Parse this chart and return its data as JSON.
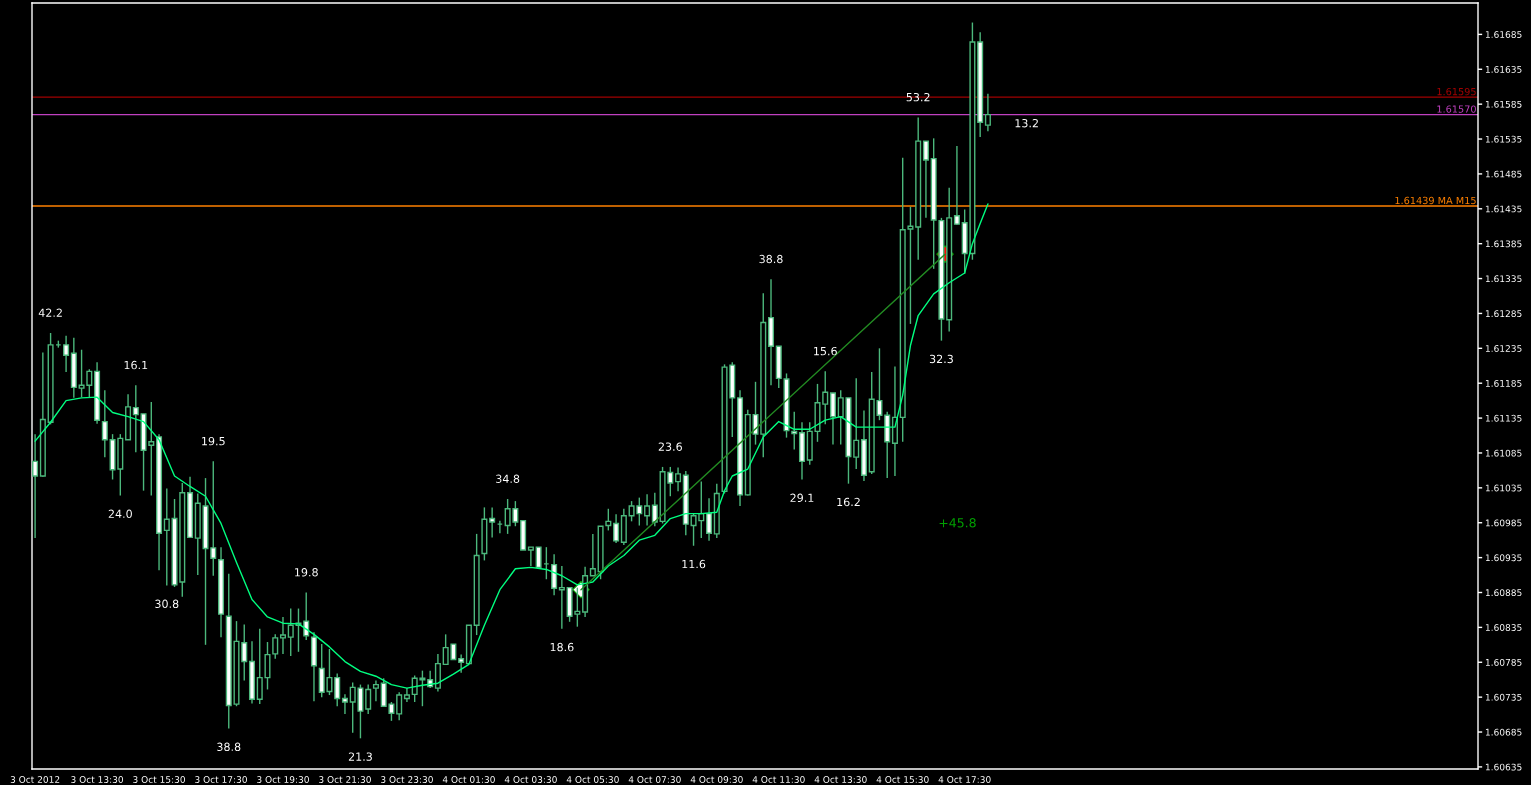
{
  "chart_data": {
    "type": "candlestick",
    "color": "#4cb87c",
    "x": [
      "2012-10-03T11:30",
      "2012-10-03T11:45",
      "2012-10-03T12:00",
      "2012-10-03T12:15",
      "2012-10-03T12:30",
      "2012-10-03T12:45",
      "2012-10-03T13:00",
      "2012-10-03T13:15",
      "2012-10-03T13:30",
      "2012-10-03T13:45",
      "2012-10-03T14:00",
      "2012-10-03T14:15",
      "2012-10-03T14:30",
      "2012-10-03T14:45",
      "2012-10-03T15:00",
      "2012-10-03T15:15",
      "2012-10-03T15:30",
      "2012-10-03T15:45",
      "2012-10-03T16:00",
      "2012-10-03T16:15",
      "2012-10-03T16:30",
      "2012-10-03T16:45",
      "2012-10-03T17:00",
      "2012-10-03T17:15",
      "2012-10-03T17:30",
      "2012-10-03T17:45",
      "2012-10-03T18:00",
      "2012-10-03T18:15",
      "2012-10-03T18:30",
      "2012-10-03T18:45",
      "2012-10-03T19:00",
      "2012-10-03T19:15",
      "2012-10-03T19:30",
      "2012-10-03T19:45",
      "2012-10-03T20:00",
      "2012-10-03T20:15",
      "2012-10-03T20:30",
      "2012-10-03T20:45",
      "2012-10-03T21:00",
      "2012-10-03T21:15",
      "2012-10-03T21:30",
      "2012-10-03T21:45",
      "2012-10-03T22:00",
      "2012-10-03T22:15",
      "2012-10-03T22:30",
      "2012-10-03T22:45",
      "2012-10-03T23:00",
      "2012-10-03T23:15",
      "2012-10-03T23:30",
      "2012-10-03T23:45",
      "2012-10-04T00:00",
      "2012-10-04T00:15",
      "2012-10-04T00:30",
      "2012-10-04T00:45",
      "2012-10-04T01:00",
      "2012-10-04T01:15",
      "2012-10-04T01:30",
      "2012-10-04T01:45",
      "2012-10-04T02:00",
      "2012-10-04T02:15",
      "2012-10-04T02:30",
      "2012-10-04T02:45",
      "2012-10-04T03:00",
      "2012-10-04T03:15",
      "2012-10-04T03:30",
      "2012-10-04T03:45",
      "2012-10-04T04:00",
      "2012-10-04T04:15",
      "2012-10-04T04:30",
      "2012-10-04T04:45",
      "2012-10-04T05:00",
      "2012-10-04T05:15",
      "2012-10-04T05:30",
      "2012-10-04T05:45",
      "2012-10-04T06:00",
      "2012-10-04T06:15",
      "2012-10-04T06:30",
      "2012-10-04T06:45",
      "2012-10-04T07:00",
      "2012-10-04T07:15",
      "2012-10-04T07:30",
      "2012-10-04T07:45",
      "2012-10-04T08:00",
      "2012-10-04T08:15",
      "2012-10-04T08:30",
      "2012-10-04T08:45",
      "2012-10-04T09:00",
      "2012-10-04T09:15",
      "2012-10-04T09:30",
      "2012-10-04T09:45",
      "2012-10-04T10:00",
      "2012-10-04T10:15",
      "2012-10-04T10:30",
      "2012-10-04T10:45",
      "2012-10-04T11:00",
      "2012-10-04T11:15",
      "2012-10-04T11:30",
      "2012-10-04T11:45",
      "2012-10-04T12:00",
      "2012-10-04T12:15",
      "2012-10-04T12:30",
      "2012-10-04T12:45",
      "2012-10-04T13:00",
      "2012-10-04T13:15",
      "2012-10-04T13:30",
      "2012-10-04T13:45",
      "2012-10-04T14:00",
      "2012-10-04T14:15",
      "2012-10-04T14:30",
      "2012-10-04T14:45",
      "2012-10-04T15:00",
      "2012-10-04T15:15",
      "2012-10-04T15:30",
      "2012-10-04T15:45",
      "2012-10-04T16:00",
      "2012-10-04T16:15",
      "2012-10-04T16:30",
      "2012-10-04T16:45",
      "2012-10-04T17:00",
      "2012-10-04T17:15",
      "2012-10-04T17:30",
      "2012-10-04T17:45",
      "2012-10-04T18:00",
      "2012-10-04T18:15"
    ],
    "ohlc": [
      [
        1.61073,
        1.61112,
        1.60963,
        1.61052
      ],
      [
        1.61052,
        1.61229,
        1.61051,
        1.61133
      ],
      [
        1.61129,
        1.61257,
        1.61126,
        1.6124
      ],
      [
        1.6124,
        1.61246,
        1.61236,
        1.6124
      ],
      [
        1.6124,
        1.61253,
        1.61201,
        1.61225
      ],
      [
        1.61228,
        1.6125,
        1.61164,
        1.61179
      ],
      [
        1.61178,
        1.61233,
        1.61165,
        1.61182
      ],
      [
        1.61182,
        1.61205,
        1.61164,
        1.61202
      ],
      [
        1.61202,
        1.61215,
        1.61127,
        1.61132
      ],
      [
        1.6113,
        1.61175,
        1.61079,
        1.61104
      ],
      [
        1.61104,
        1.61112,
        1.61047,
        1.61061
      ],
      [
        1.61062,
        1.61112,
        1.61024,
        1.61106
      ],
      [
        1.61104,
        1.61169,
        1.61104,
        1.61151
      ],
      [
        1.6115,
        1.61182,
        1.61086,
        1.6114
      ],
      [
        1.61141,
        1.61141,
        1.61031,
        1.61089
      ],
      [
        1.61096,
        1.61158,
        1.61024,
        1.61101
      ],
      [
        1.61108,
        1.61112,
        1.60917,
        1.6097
      ],
      [
        1.60974,
        1.61034,
        1.60895,
        1.6099
      ],
      [
        1.60991,
        1.61019,
        1.60893,
        1.60896
      ],
      [
        1.609,
        1.61042,
        1.60879,
        1.61028
      ],
      [
        1.61028,
        1.61051,
        1.60963,
        1.60964
      ],
      [
        1.60963,
        1.61027,
        1.6091,
        1.61013
      ],
      [
        1.61009,
        1.61049,
        1.6081,
        1.60948
      ],
      [
        1.60949,
        1.61073,
        1.60909,
        1.60934
      ],
      [
        1.60932,
        1.6095,
        1.60821,
        1.60854
      ],
      [
        1.60851,
        1.60912,
        1.6069,
        1.60723
      ],
      [
        1.60725,
        1.60844,
        1.60722,
        1.60815
      ],
      [
        1.60813,
        1.60839,
        1.60759,
        1.60786
      ],
      [
        1.60786,
        1.60815,
        1.60726,
        1.60732
      ],
      [
        1.60732,
        1.60833,
        1.60725,
        1.60763
      ],
      [
        1.60763,
        1.60814,
        1.60746,
        1.60796
      ],
      [
        1.60797,
        1.60825,
        1.6079,
        1.6082
      ],
      [
        1.6082,
        1.6085,
        1.60797,
        1.60824
      ],
      [
        1.60821,
        1.60862,
        1.60794,
        1.60838
      ],
      [
        1.60838,
        1.60862,
        1.608,
        1.60841
      ],
      [
        1.60844,
        1.60885,
        1.60817,
        1.60823
      ],
      [
        1.60821,
        1.60828,
        1.60729,
        1.6078
      ],
      [
        1.60776,
        1.60811,
        1.60735,
        1.60742
      ],
      [
        1.60743,
        1.60804,
        1.60738,
        1.60763
      ],
      [
        1.60763,
        1.60769,
        1.60722,
        1.60733
      ],
      [
        1.60733,
        1.60739,
        1.60711,
        1.60728
      ],
      [
        1.60728,
        1.60756,
        1.60684,
        1.60749
      ],
      [
        1.60748,
        1.60753,
        1.60676,
        1.60715
      ],
      [
        1.60718,
        1.60753,
        1.60711,
        1.60746
      ],
      [
        1.60748,
        1.60759,
        1.60729,
        1.60753
      ],
      [
        1.60755,
        1.60762,
        1.60722,
        1.60722
      ],
      [
        1.60725,
        1.60728,
        1.60701,
        1.60712
      ],
      [
        1.60711,
        1.60742,
        1.60702,
        1.60738
      ],
      [
        1.60733,
        1.60748,
        1.60728,
        1.60738
      ],
      [
        1.60739,
        1.60766,
        1.60728,
        1.60762
      ],
      [
        1.6076,
        1.60773,
        1.60722,
        1.60762
      ],
      [
        1.6076,
        1.60773,
        1.60748,
        1.6075
      ],
      [
        1.60748,
        1.60797,
        1.60743,
        1.60783
      ],
      [
        1.60782,
        1.60825,
        1.60782,
        1.60806
      ],
      [
        1.60811,
        1.60811,
        1.60789,
        1.60789
      ],
      [
        1.6079,
        1.60796,
        1.6077,
        1.60785
      ],
      [
        1.60783,
        1.60838,
        1.60783,
        1.60838
      ],
      [
        1.60838,
        1.60969,
        1.60824,
        1.60938
      ],
      [
        1.60941,
        1.61007,
        1.60931,
        1.6099
      ],
      [
        1.60991,
        1.61007,
        1.60964,
        1.60986
      ],
      [
        1.60983,
        1.60988,
        1.6097,
        1.60983
      ],
      [
        1.60981,
        1.61019,
        1.60969,
        1.61005
      ],
      [
        1.61005,
        1.61016,
        1.6098,
        1.60986
      ],
      [
        1.60988,
        1.60988,
        1.60946,
        1.60946
      ],
      [
        1.60946,
        1.6095,
        1.60923,
        1.6095
      ],
      [
        1.6095,
        1.6095,
        1.60921,
        1.60921
      ],
      [
        1.60926,
        1.6095,
        1.60904,
        1.60926
      ],
      [
        1.60925,
        1.6094,
        1.60881,
        1.60891
      ],
      [
        1.60889,
        1.60923,
        1.60833,
        1.60892
      ],
      [
        1.60892,
        1.60892,
        1.60843,
        1.60851
      ],
      [
        1.60854,
        1.60892,
        1.60836,
        1.60858
      ],
      [
        1.60857,
        1.60922,
        1.6085,
        1.60909
      ],
      [
        1.60909,
        1.60969,
        1.60909,
        1.60919
      ],
      [
        1.60915,
        1.6098,
        1.60904,
        1.6098
      ],
      [
        1.60981,
        1.61005,
        1.60974,
        1.60987
      ],
      [
        1.60984,
        1.60997,
        1.60956,
        1.60959
      ],
      [
        1.60957,
        1.61005,
        1.60953,
        1.60995
      ],
      [
        1.60995,
        1.61016,
        1.60987,
        1.61009
      ],
      [
        1.61009,
        1.61021,
        1.60981,
        1.60998
      ],
      [
        1.60995,
        1.61026,
        1.60981,
        1.61009
      ],
      [
        1.6101,
        1.61028,
        1.6098,
        1.60986
      ],
      [
        1.60987,
        1.61065,
        1.60984,
        1.61058
      ],
      [
        1.61057,
        1.61065,
        1.61023,
        1.61042
      ],
      [
        1.61044,
        1.61064,
        1.6103,
        1.61055
      ],
      [
        1.61053,
        1.61059,
        1.60967,
        1.60983
      ],
      [
        1.60981,
        1.60998,
        1.60952,
        1.60995
      ],
      [
        1.60988,
        1.61044,
        1.60963,
        1.60998
      ],
      [
        1.60998,
        1.6102,
        1.60959,
        1.6097
      ],
      [
        1.60969,
        1.61041,
        1.60963,
        1.61027
      ],
      [
        1.6103,
        1.61212,
        1.61027,
        1.61208
      ],
      [
        1.61211,
        1.61215,
        1.61108,
        1.61164
      ],
      [
        1.61164,
        1.61175,
        1.61009,
        1.61025
      ],
      [
        1.61025,
        1.61147,
        1.61024,
        1.6114
      ],
      [
        1.6114,
        1.61187,
        1.61097,
        1.61112
      ],
      [
        1.61112,
        1.61314,
        1.61079,
        1.61272
      ],
      [
        1.61279,
        1.61334,
        1.61182,
        1.61238
      ],
      [
        1.61238,
        1.61238,
        1.61178,
        1.61192
      ],
      [
        1.61191,
        1.61199,
        1.61107,
        1.61117
      ],
      [
        1.61116,
        1.61144,
        1.6109,
        1.61113
      ],
      [
        1.61114,
        1.61129,
        1.61047,
        1.61073
      ],
      [
        1.61075,
        1.61129,
        1.61068,
        1.61116
      ],
      [
        1.61116,
        1.61184,
        1.61101,
        1.61157
      ],
      [
        1.61155,
        1.61202,
        1.61126,
        1.61172
      ],
      [
        1.61171,
        1.61171,
        1.61097,
        1.61137
      ],
      [
        1.61137,
        1.61175,
        1.61097,
        1.61164
      ],
      [
        1.61164,
        1.61164,
        1.61041,
        1.6108
      ],
      [
        1.61079,
        1.61192,
        1.61062,
        1.61103
      ],
      [
        1.61104,
        1.61146,
        1.61045,
        1.61053
      ],
      [
        1.61058,
        1.61201,
        1.61055,
        1.61162
      ],
      [
        1.6116,
        1.61235,
        1.61132,
        1.61139
      ],
      [
        1.61139,
        1.61144,
        1.61049,
        1.61101
      ],
      [
        1.61099,
        1.61209,
        1.61052,
        1.61136
      ],
      [
        1.61136,
        1.61508,
        1.61101,
        1.61405
      ],
      [
        1.61406,
        1.61438,
        1.6127,
        1.6141
      ],
      [
        1.61409,
        1.61566,
        1.61362,
        1.61532
      ],
      [
        1.61532,
        1.61532,
        1.61422,
        1.61505
      ],
      [
        1.61507,
        1.61536,
        1.61349,
        1.61419
      ],
      [
        1.61418,
        1.61422,
        1.61246,
        1.61277
      ],
      [
        1.61276,
        1.61465,
        1.61259,
        1.61422
      ],
      [
        1.61425,
        1.61525,
        1.61412,
        1.61413
      ],
      [
        1.61415,
        1.61434,
        1.61342,
        1.61371
      ],
      [
        1.61371,
        1.61702,
        1.61362,
        1.61674
      ],
      [
        1.61674,
        1.61688,
        1.61538,
        1.61559
      ],
      [
        1.61555,
        1.616,
        1.61546,
        1.6157
      ]
    ],
    "series": [
      {
        "type": "line",
        "color": "#00ff80",
        "x": [
          "2012-10-03T11:30",
          "2012-10-03T12:00",
          "2012-10-03T12:30",
          "2012-10-03T13:00",
          "2012-10-03T13:30",
          "2012-10-03T14:00",
          "2012-10-03T14:30",
          "2012-10-03T15:00",
          "2012-10-03T15:30",
          "2012-10-03T16:00",
          "2012-10-03T16:30",
          "2012-10-03T17:00",
          "2012-10-03T17:30",
          "2012-10-03T18:00",
          "2012-10-03T18:30",
          "2012-10-03T19:00",
          "2012-10-03T19:30",
          "2012-10-03T20:00",
          "2012-10-03T20:30",
          "2012-10-03T21:00",
          "2012-10-03T21:30",
          "2012-10-03T22:00",
          "2012-10-03T22:30",
          "2012-10-03T23:00",
          "2012-10-03T23:30",
          "2012-10-04T00:00",
          "2012-10-04T00:30",
          "2012-10-04T01:00",
          "2012-10-04T01:30",
          "2012-10-04T02:00",
          "2012-10-04T02:30",
          "2012-10-04T03:00",
          "2012-10-04T03:30",
          "2012-10-04T04:00",
          "2012-10-04T04:30",
          "2012-10-04T05:00",
          "2012-10-04T05:30",
          "2012-10-04T06:00",
          "2012-10-04T06:30",
          "2012-10-04T07:00",
          "2012-10-04T07:30",
          "2012-10-04T08:00",
          "2012-10-04T08:30",
          "2012-10-04T09:00",
          "2012-10-04T09:30",
          "2012-10-04T09:45",
          "2012-10-04T10:00",
          "2012-10-04T10:30",
          "2012-10-04T11:00",
          "2012-10-04T11:30",
          "2012-10-04T12:00",
          "2012-10-04T12:30",
          "2012-10-04T13:00",
          "2012-10-04T13:30",
          "2012-10-04T14:00",
          "2012-10-04T14:30",
          "2012-10-04T15:00",
          "2012-10-04T15:15",
          "2012-10-04T15:30",
          "2012-10-04T15:45",
          "2012-10-04T16:00",
          "2012-10-04T16:30",
          "2012-10-04T17:00",
          "2012-10-04T17:30",
          "2012-10-04T17:45",
          "2012-10-04T18:00",
          "2012-10-04T18:15"
        ],
        "values": [
          1.61102,
          1.61129,
          1.6116,
          1.61164,
          1.61165,
          1.61143,
          1.61137,
          1.6113,
          1.61104,
          1.61052,
          1.61037,
          1.61023,
          1.60984,
          1.60928,
          1.60875,
          1.6085,
          1.60841,
          1.6084,
          1.60825,
          1.60807,
          1.60786,
          1.60772,
          1.60765,
          1.60753,
          1.60748,
          1.60752,
          1.60755,
          1.60768,
          1.60782,
          1.60838,
          1.60889,
          1.60919,
          1.60921,
          1.60918,
          1.60909,
          1.60896,
          1.609,
          1.60923,
          1.60938,
          1.6096,
          1.60967,
          1.60991,
          1.60998,
          1.60998,
          1.61,
          1.61031,
          1.61052,
          1.61062,
          1.61108,
          1.6113,
          1.61119,
          1.61119,
          1.61132,
          1.61137,
          1.61122,
          1.61122,
          1.61122,
          1.61122,
          1.61168,
          1.61239,
          1.61282,
          1.61313,
          1.61329,
          1.61343,
          1.61385,
          1.61414,
          1.61442
        ]
      },
      {
        "type": "line",
        "color": "#228b22",
        "x": [
          "2012-10-04T05:07",
          "2012-10-04T16:52"
        ],
        "values": [
          1.60889,
          1.6137
        ]
      },
      {
        "type": "scatter",
        "marker": "diamond",
        "colors": [
          "#ffffff",
          "#ff0000"
        ],
        "x": [
          "2012-10-04T05:07",
          "2012-10-04T16:52"
        ],
        "values": [
          1.60889,
          1.6137
        ]
      }
    ],
    "xlim": [
      "2012-10-03T11:24",
      "2012-10-05T10:04"
    ],
    "xticks": [
      {
        "value": "2012-10-03T11:30",
        "label": "3 Oct 2012"
      },
      {
        "value": "2012-10-03T13:30",
        "label": "3 Oct 13:30"
      },
      {
        "value": "2012-10-03T15:30",
        "label": "3 Oct 15:30"
      },
      {
        "value": "2012-10-03T17:30",
        "label": "3 Oct 17:30"
      },
      {
        "value": "2012-10-03T19:30",
        "label": "3 Oct 19:30"
      },
      {
        "value": "2012-10-03T21:30",
        "label": "3 Oct 21:30"
      },
      {
        "value": "2012-10-03T23:30",
        "label": "3 Oct 23:30"
      },
      {
        "value": "2012-10-04T01:30",
        "label": "4 Oct 01:30"
      },
      {
        "value": "2012-10-04T03:30",
        "label": "4 Oct 03:30"
      },
      {
        "value": "2012-10-04T05:30",
        "label": "4 Oct 05:30"
      },
      {
        "value": "2012-10-04T07:30",
        "label": "4 Oct 07:30"
      },
      {
        "value": "2012-10-04T09:30",
        "label": "4 Oct 09:30"
      },
      {
        "value": "2012-10-04T11:30",
        "label": "4 Oct 11:30"
      },
      {
        "value": "2012-10-04T13:30",
        "label": "4 Oct 13:30"
      },
      {
        "value": "2012-10-04T15:30",
        "label": "4 Oct 15:30"
      },
      {
        "value": "2012-10-04T17:30",
        "label": "4 Oct 17:30"
      }
    ],
    "ylim": [
      1.60632,
      1.6173
    ],
    "yticks": [
      1.60635,
      1.60685,
      1.60735,
      1.60785,
      1.60835,
      1.60885,
      1.60935,
      1.60985,
      1.61035,
      1.61085,
      1.61135,
      1.61185,
      1.61235,
      1.61285,
      1.61335,
      1.61385,
      1.61435,
      1.61485,
      1.61535,
      1.61585,
      1.61635,
      1.61685
    ],
    "ref_lines": [
      {
        "axis": "y",
        "value": 1.61595,
        "label": "1.61595",
        "color": "#a00000"
      },
      {
        "axis": "y",
        "value": 1.6157,
        "label": "1.61570",
        "color": "#c040c0"
      },
      {
        "axis": "y",
        "value": 1.61439,
        "label": "1.61439 MA M15",
        "color": "#ff8000"
      }
    ],
    "annotations": [
      {
        "text": "42.2",
        "x": "2012-10-03T12:00",
        "y": 1.61257
      },
      {
        "text": "16.1",
        "x": "2012-10-03T14:45",
        "y": 1.61182
      },
      {
        "text": "19.5",
        "x": "2012-10-03T17:15",
        "y": 1.61073
      },
      {
        "text": "24.0",
        "x": "2012-10-03T14:15",
        "y": 1.61024
      },
      {
        "text": "30.8",
        "x": "2012-10-03T15:45",
        "y": 1.60895
      },
      {
        "text": "38.8",
        "x": "2012-10-03T17:45",
        "y": 1.6069
      },
      {
        "text": "19.8",
        "x": "2012-10-03T20:15",
        "y": 1.60885
      },
      {
        "text": "21.3",
        "x": "2012-10-03T22:00",
        "y": 1.60676
      },
      {
        "text": "34.8",
        "x": "2012-10-04T02:45",
        "y": 1.61019
      },
      {
        "text": "18.6",
        "x": "2012-10-04T04:30",
        "y": 1.60833
      },
      {
        "text": "23.6",
        "x": "2012-10-04T08:00",
        "y": 1.61065
      },
      {
        "text": "11.6",
        "x": "2012-10-04T08:45",
        "y": 1.60952
      },
      {
        "text": "38.8",
        "x": "2012-10-04T11:15",
        "y": 1.61334
      },
      {
        "text": "15.6",
        "x": "2012-10-04T13:00",
        "y": 1.61202
      },
      {
        "text": "29.1",
        "x": "2012-10-04T12:15",
        "y": 1.61047
      },
      {
        "text": "16.2",
        "x": "2012-10-04T13:45",
        "y": 1.61041
      },
      {
        "text": "32.3",
        "x": "2012-10-04T16:45",
        "y": 1.61246
      },
      {
        "text": "53.2",
        "x": "2012-10-04T16:00",
        "y": 1.61566
      },
      {
        "text": "13.2",
        "x": "2012-10-04T19:30",
        "y": 1.6157
      },
      "+45.8"
    ]
  }
}
